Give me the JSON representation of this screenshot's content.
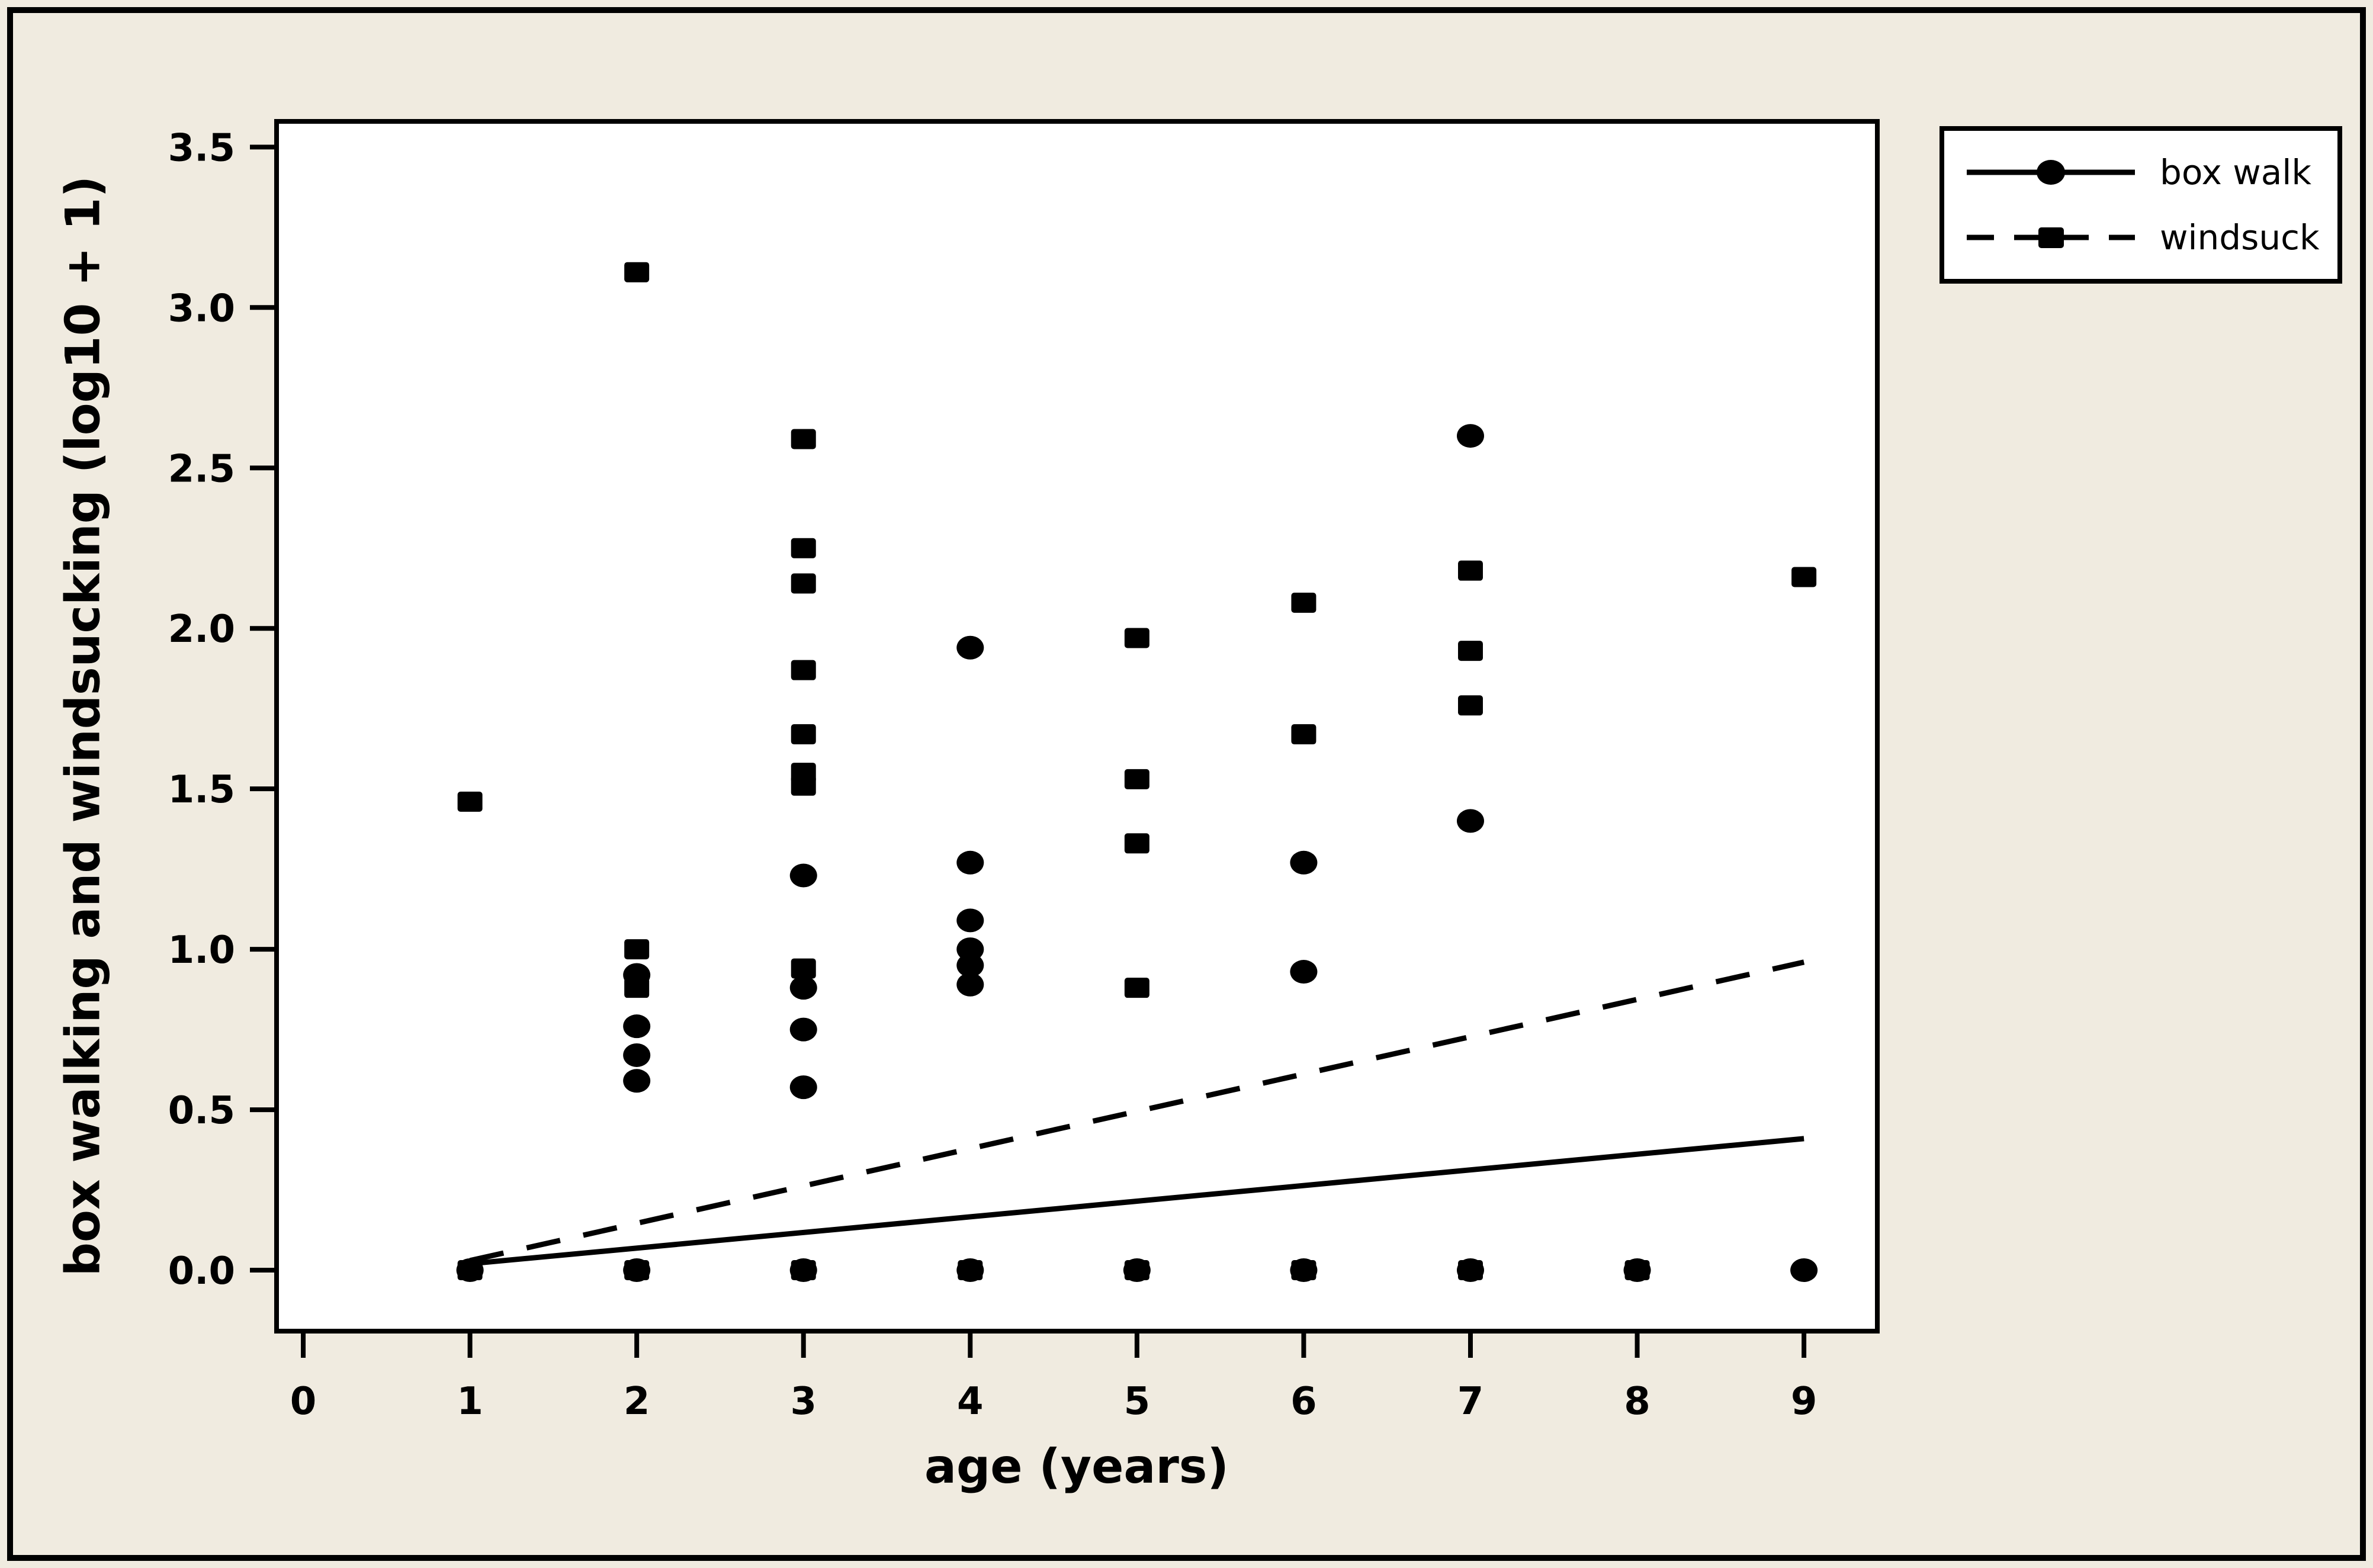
{
  "figure": {
    "background_color": "#F0EBE0",
    "plot_background_color": "#FFFFFF",
    "frame_color": "#000000",
    "series_color": "#000000"
  },
  "legend": {
    "entries": [
      {
        "label": "box walk",
        "marker": "circle",
        "line_style": "solid"
      },
      {
        "label": "windsuck",
        "marker": "square",
        "line_style": "dashed"
      }
    ]
  },
  "chart_data": {
    "type": "scatter",
    "title": "",
    "xlabel": "age (years)",
    "ylabel": "box walking and windsucking (log10 + 1)",
    "xlim": [
      -0.16,
      9.44
    ],
    "ylim": [
      -0.19,
      3.58
    ],
    "grid": false,
    "legend_position": "top-right",
    "x_tick_values": [
      0,
      1,
      2,
      3,
      4,
      5,
      6,
      7,
      8,
      9
    ],
    "x_tick_labels": [
      "0",
      "1",
      "2",
      "3",
      "4",
      "5",
      "6",
      "7",
      "8",
      "9"
    ],
    "y_tick_values": [
      0.0,
      0.5,
      1.0,
      1.5,
      2.0,
      2.5,
      3.0,
      3.5
    ],
    "y_tick_labels": [
      "0.0",
      "0.5",
      "1.0",
      "1.5",
      "2.0",
      "2.5",
      "3.0",
      "3.5"
    ],
    "series": [
      {
        "name": "box walk",
        "marker": "circle",
        "line_style": "solid",
        "points": [
          [
            1,
            0.0
          ],
          [
            2,
            0.0
          ],
          [
            2,
            0.59
          ],
          [
            2,
            0.67
          ],
          [
            2,
            0.76
          ],
          [
            2,
            0.92
          ],
          [
            3,
            0.0
          ],
          [
            3,
            0.57
          ],
          [
            3,
            0.75
          ],
          [
            3,
            0.88
          ],
          [
            3,
            1.23
          ],
          [
            4,
            0.0
          ],
          [
            4,
            0.89
          ],
          [
            4,
            0.95
          ],
          [
            4,
            1.0
          ],
          [
            4,
            1.09
          ],
          [
            4,
            1.27
          ],
          [
            4,
            1.94
          ],
          [
            5,
            0.0
          ],
          [
            6,
            0.0
          ],
          [
            6,
            0.93
          ],
          [
            6,
            1.27
          ],
          [
            7,
            0.0
          ],
          [
            7,
            1.4
          ],
          [
            7,
            2.6
          ],
          [
            8,
            0.0
          ],
          [
            9,
            0.0
          ]
        ],
        "trend_line": {
          "from": [
            1,
            0.02
          ],
          "to": [
            9,
            0.41
          ]
        }
      },
      {
        "name": "windsuck",
        "marker": "square",
        "line_style": "dashed",
        "points": [
          [
            1,
            0.0
          ],
          [
            1,
            1.46
          ],
          [
            2,
            0.0
          ],
          [
            2,
            0.88
          ],
          [
            2,
            1.0
          ],
          [
            2,
            3.11
          ],
          [
            3,
            0.0
          ],
          [
            3,
            0.94
          ],
          [
            3,
            1.51
          ],
          [
            3,
            1.55
          ],
          [
            3,
            1.67
          ],
          [
            3,
            1.87
          ],
          [
            3,
            2.14
          ],
          [
            3,
            2.25
          ],
          [
            3,
            2.59
          ],
          [
            4,
            0.0
          ],
          [
            5,
            0.0
          ],
          [
            5,
            0.88
          ],
          [
            5,
            1.33
          ],
          [
            5,
            1.53
          ],
          [
            5,
            1.97
          ],
          [
            6,
            0.0
          ],
          [
            6,
            1.67
          ],
          [
            6,
            2.08
          ],
          [
            7,
            0.0
          ],
          [
            7,
            1.76
          ],
          [
            7,
            1.93
          ],
          [
            7,
            2.18
          ],
          [
            8,
            0.0
          ],
          [
            9,
            2.16
          ]
        ],
        "trend_line": {
          "from": [
            1,
            0.03
          ],
          "to": [
            9,
            0.96
          ]
        }
      }
    ]
  }
}
